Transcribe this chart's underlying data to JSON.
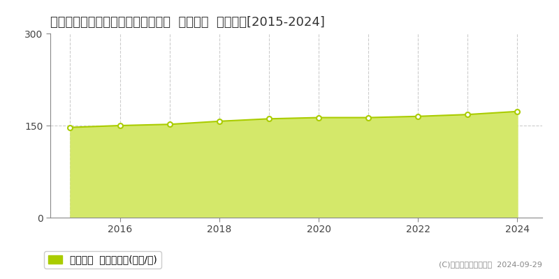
{
  "title": "東京都北区滝野川七丁目２６番５外  基準地価  地価推移[2015-2024]",
  "years": [
    2015,
    2016,
    2017,
    2018,
    2019,
    2020,
    2021,
    2022,
    2023,
    2024
  ],
  "values": [
    147,
    150,
    152,
    157,
    161,
    163,
    163,
    165,
    168,
    173
  ],
  "line_color": "#aacc00",
  "fill_color": "#d4e86a",
  "marker_color": "#ffffff",
  "marker_edge_color": "#aacc00",
  "bg_color": "#ffffff",
  "plot_bg_color": "#ffffff",
  "ylim": [
    0,
    300
  ],
  "yticks": [
    0,
    150,
    300
  ],
  "xtick_years": [
    2016,
    2018,
    2020,
    2022,
    2024
  ],
  "xlim": [
    2014.6,
    2024.5
  ],
  "legend_label": "基準地価  平均坪単価(万円/坪)",
  "copyright_text": "(C)土地価格ドットコム  2024-09-29",
  "grid_color": "#cccccc",
  "grid_style": "--",
  "title_fontsize": 13,
  "legend_fontsize": 10,
  "tick_fontsize": 10,
  "copyright_fontsize": 8
}
